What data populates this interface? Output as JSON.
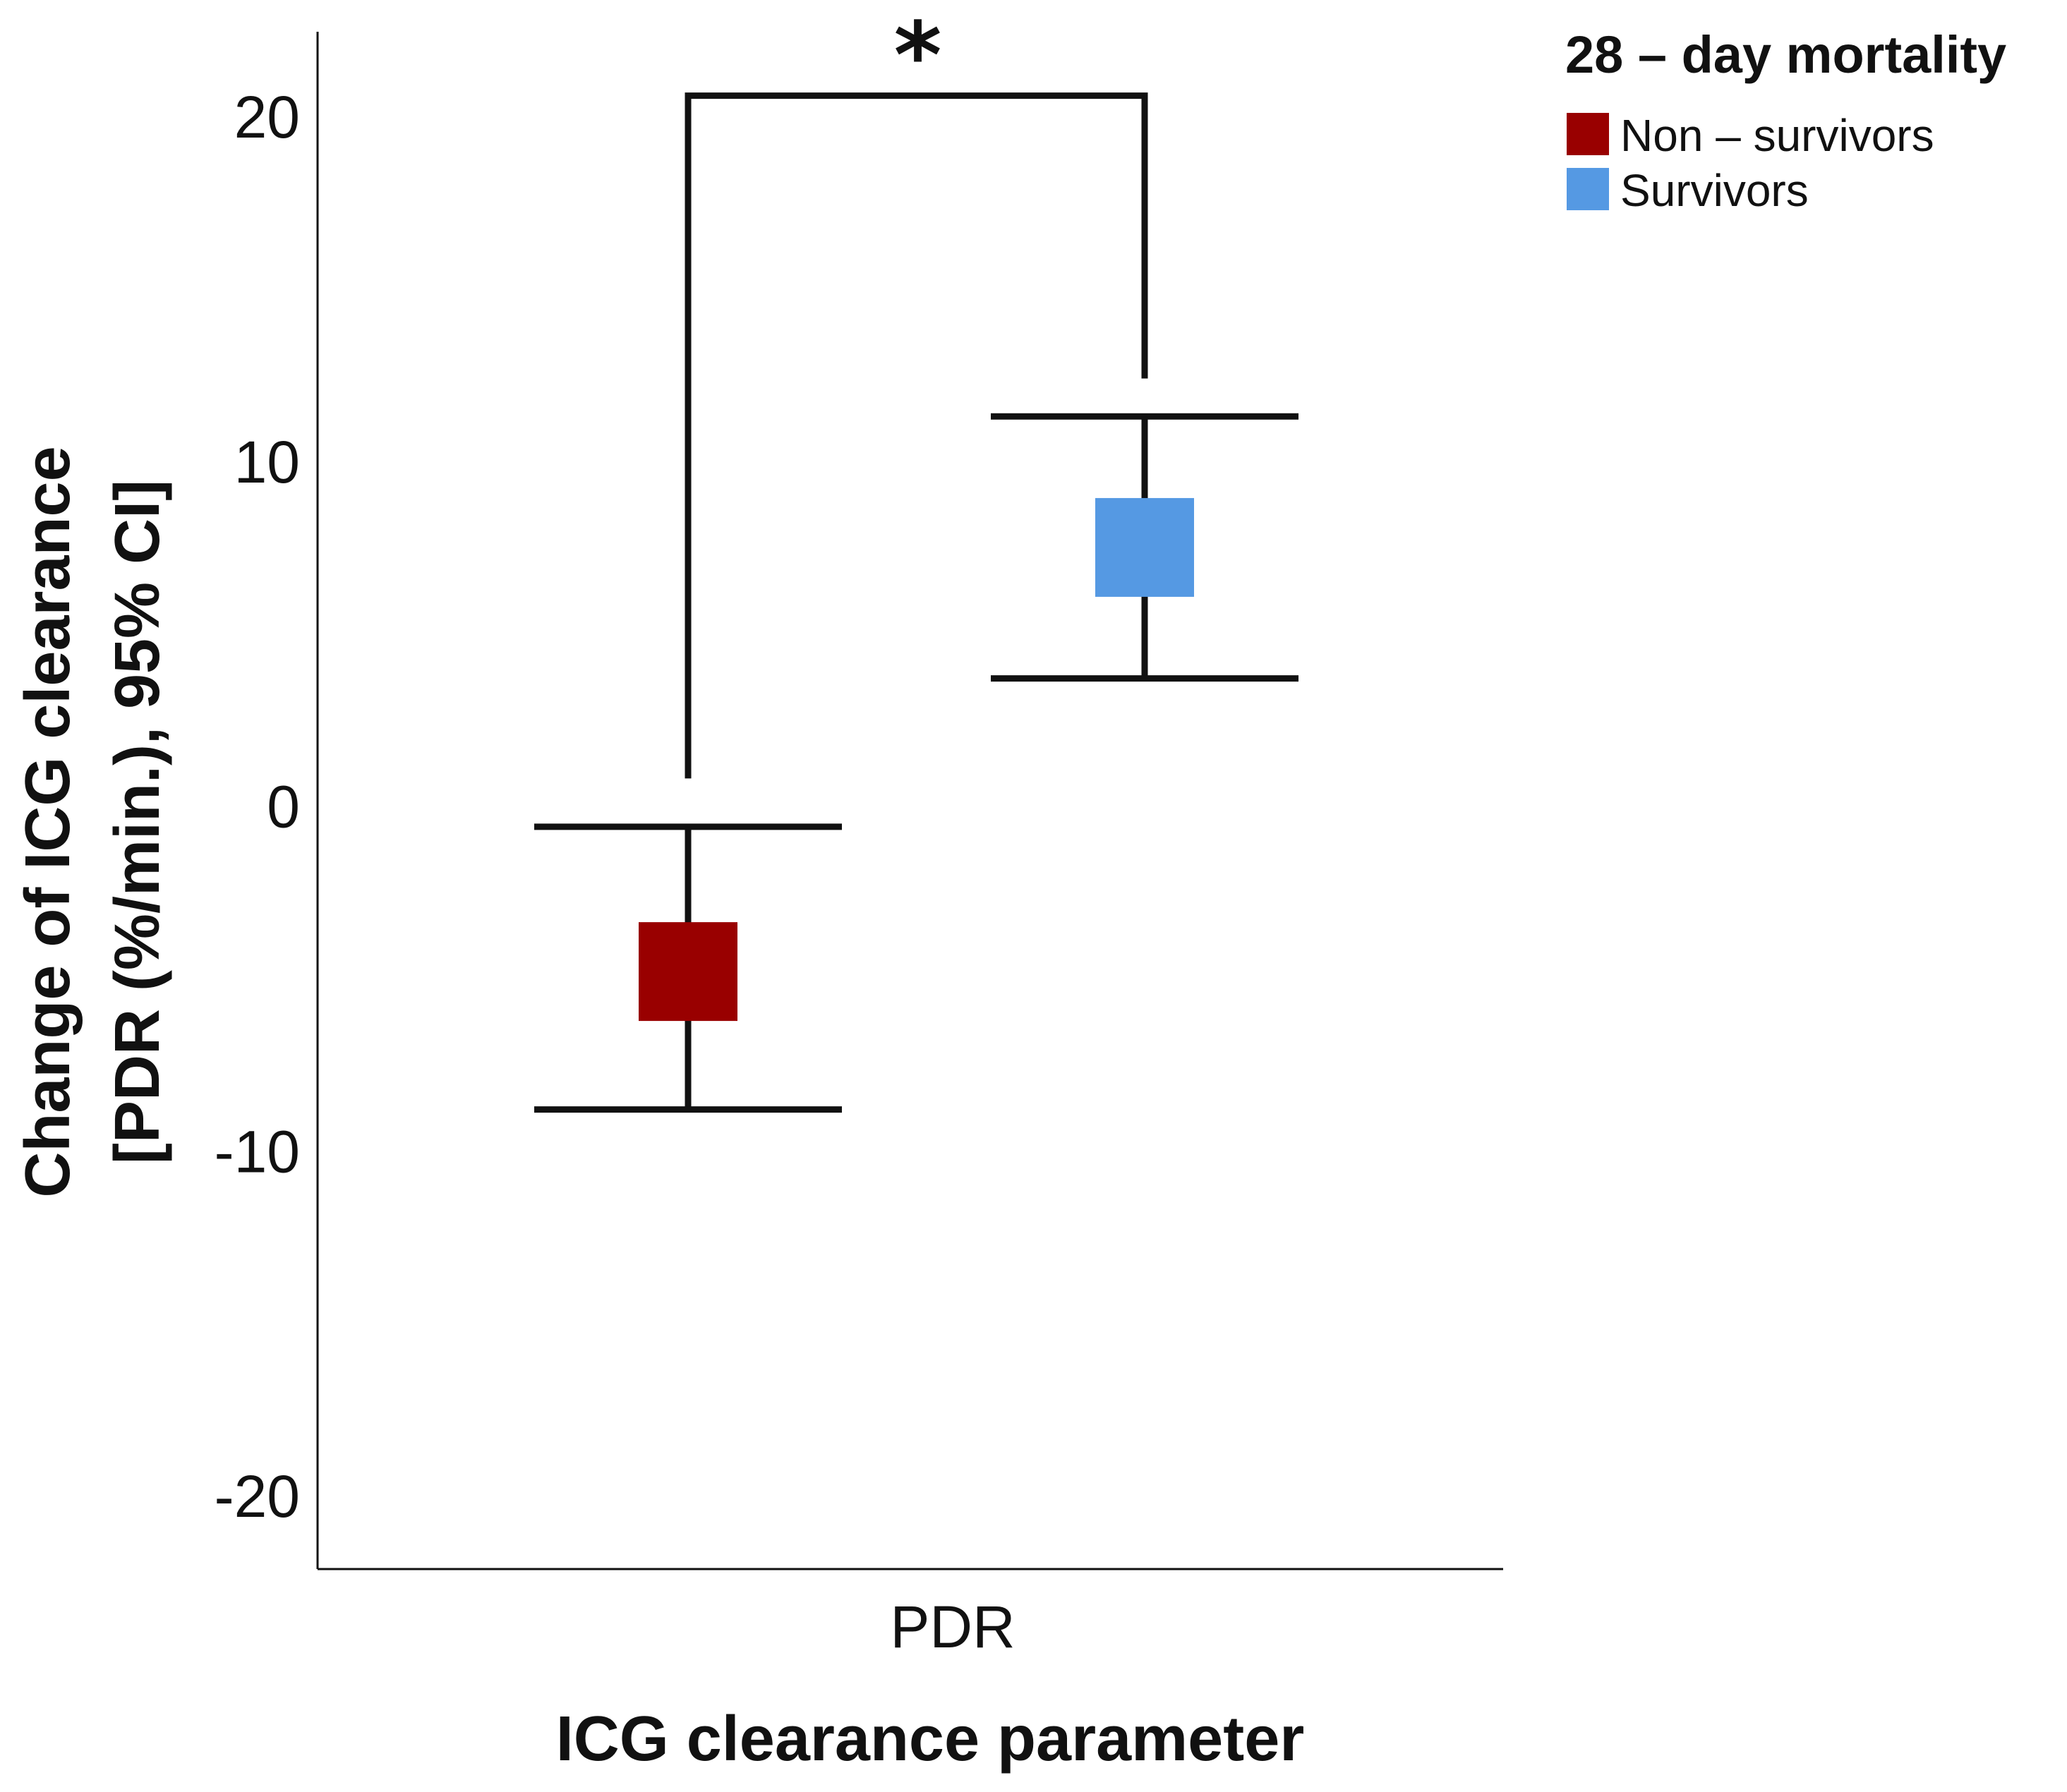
{
  "chart_data": {
    "type": "errorbar",
    "title": "",
    "xlabel": "ICG clearance parameter",
    "ylabel_line1": "Change of ICG clearance",
    "ylabel_line2": "[PDR (%/min.), 95% CI]",
    "ylim": [
      -22,
      22
    ],
    "yticks": [
      20,
      10,
      0,
      -10,
      -20
    ],
    "ytick_labels": [
      "20",
      "10",
      "0",
      "-10",
      "-20"
    ],
    "categories": [
      "PDR"
    ],
    "series": [
      {
        "name": "Non – survivors",
        "color": "#990000",
        "mean": -4.8,
        "ci_low": -8.8,
        "ci_high": -0.6
      },
      {
        "name": "Survivors",
        "color": "#5599e3",
        "mean": 7.5,
        "ci_low": 3.7,
        "ci_high": 11.3
      }
    ],
    "significance": {
      "label": "*",
      "between": [
        "Non – survivors",
        "Survivors"
      ],
      "bracket_y": 20.6,
      "left_drop_to": 0.8,
      "right_drop_to": 12.4
    },
    "legend": {
      "title": "28 – day mortality",
      "position": "top-right"
    }
  }
}
